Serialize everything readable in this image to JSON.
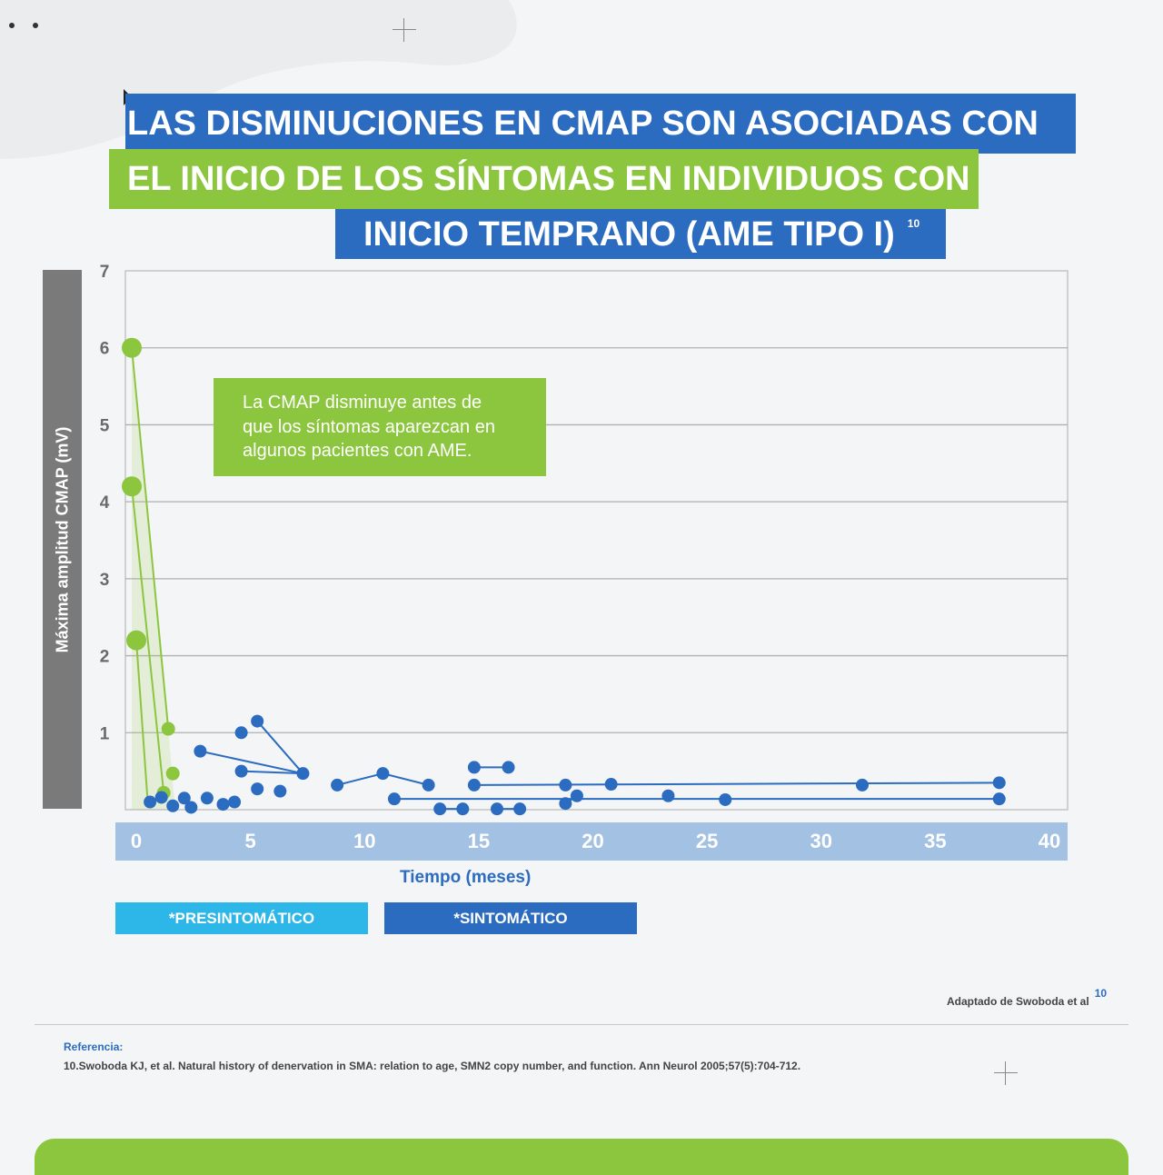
{
  "title": {
    "line1": "LAS DISMINUCIONES EN CMAP SON ASOCIADAS CON",
    "line2": "EL INICIO DE LOS SÍNTOMAS EN INDIVIDUOS CON",
    "line3": "INICIO TEMPRANO (AME TIPO I)",
    "ref": "10"
  },
  "annotation": [
    "La CMAP disminuye antes de",
    "que los síntomas aparezcan en",
    "algunos pacientes con AME."
  ],
  "legend": {
    "presymptomatic": "*PRESINTOMÁTICO",
    "symptomatic": "*SINTOMÁTICO"
  },
  "source": {
    "text": "Adaptado de Swoboda et al",
    "ref": "10"
  },
  "reference": {
    "title": "Referencia:",
    "text": "10.Swoboda KJ, et al. Natural history of denervation in SMA: relation to age, SMN2 copy number, and function. Ann Neurol 2005;57(5):704-712."
  },
  "colors": {
    "presymptomatic": "#8cc63f",
    "symptomatic": "#2b6cc0",
    "legend_presymptomatic": "#2db6e8"
  },
  "chart_data": {
    "type": "scatter",
    "xlabel": "Tiempo (meses)",
    "ylabel": "Máxima amplitud CMAP (mV)",
    "xlim": [
      0,
      40
    ],
    "ylim": [
      0,
      7
    ],
    "x_ticks": [
      0,
      5,
      10,
      15,
      20,
      25,
      30,
      35,
      40
    ],
    "y_ticks": [
      1,
      2,
      3,
      4,
      5,
      6,
      7
    ],
    "grid": true,
    "series": [
      {
        "name": "*PRESINTOMÁTICO",
        "lines": [
          [
            [
              0,
              6.0
            ],
            [
              1.6,
              1.05
            ]
          ],
          [
            [
              0,
              4.2
            ],
            [
              1.4,
              0.22
            ]
          ],
          [
            [
              0.2,
              2.2
            ],
            [
              0.7,
              0.1
            ]
          ]
        ],
        "large_points": [
          [
            0,
            6.0
          ],
          [
            0,
            4.2
          ],
          [
            0.2,
            2.2
          ]
        ],
        "points": [
          [
            1.6,
            1.05
          ],
          [
            1.4,
            0.22
          ],
          [
            1.8,
            0.47
          ]
        ]
      },
      {
        "name": "*SINTOMÁTICO",
        "lines": [
          [
            [
              5.5,
              1.15
            ],
            [
              7.5,
              0.47
            ]
          ],
          [
            [
              3.0,
              0.76
            ],
            [
              7.5,
              0.47
            ]
          ],
          [
            [
              4.8,
              0.5
            ],
            [
              7.5,
              0.47
            ]
          ],
          [
            [
              9.0,
              0.32
            ],
            [
              11.0,
              0.47
            ],
            [
              13.0,
              0.32
            ]
          ],
          [
            [
              11.5,
              0.14
            ],
            [
              38.0,
              0.14
            ]
          ],
          [
            [
              15.0,
              0.32
            ],
            [
              38.0,
              0.35
            ]
          ],
          [
            [
              15.0,
              0.55
            ],
            [
              16.5,
              0.55
            ]
          ],
          [
            [
              13.5,
              0.01
            ],
            [
              14.5,
              0.01
            ]
          ],
          [
            [
              16.0,
              0.01
            ],
            [
              17.0,
              0.01
            ]
          ],
          [
            [
              19.0,
              0.08
            ],
            [
              19.5,
              0.18
            ]
          ]
        ],
        "points": [
          [
            0.8,
            0.1
          ],
          [
            1.3,
            0.16
          ],
          [
            1.8,
            0.05
          ],
          [
            2.3,
            0.15
          ],
          [
            2.6,
            0.03
          ],
          [
            3.3,
            0.15
          ],
          [
            4.0,
            0.07
          ],
          [
            4.5,
            0.1
          ],
          [
            3.0,
            0.76
          ],
          [
            4.8,
            1.0
          ],
          [
            5.5,
            1.15
          ],
          [
            4.8,
            0.5
          ],
          [
            5.5,
            0.27
          ],
          [
            6.5,
            0.24
          ],
          [
            7.5,
            0.47
          ],
          [
            9.0,
            0.32
          ],
          [
            11.0,
            0.47
          ],
          [
            11.5,
            0.14
          ],
          [
            13.0,
            0.32
          ],
          [
            13.5,
            0.01
          ],
          [
            14.5,
            0.01
          ],
          [
            15.0,
            0.32
          ],
          [
            15.0,
            0.55
          ],
          [
            16.5,
            0.55
          ],
          [
            16.0,
            0.01
          ],
          [
            17.0,
            0.01
          ],
          [
            19.0,
            0.32
          ],
          [
            19.0,
            0.08
          ],
          [
            19.5,
            0.18
          ],
          [
            21.0,
            0.33
          ],
          [
            23.5,
            0.18
          ],
          [
            26.0,
            0.13
          ],
          [
            32.0,
            0.32
          ],
          [
            38.0,
            0.35
          ],
          [
            38.0,
            0.14
          ]
        ]
      }
    ]
  }
}
